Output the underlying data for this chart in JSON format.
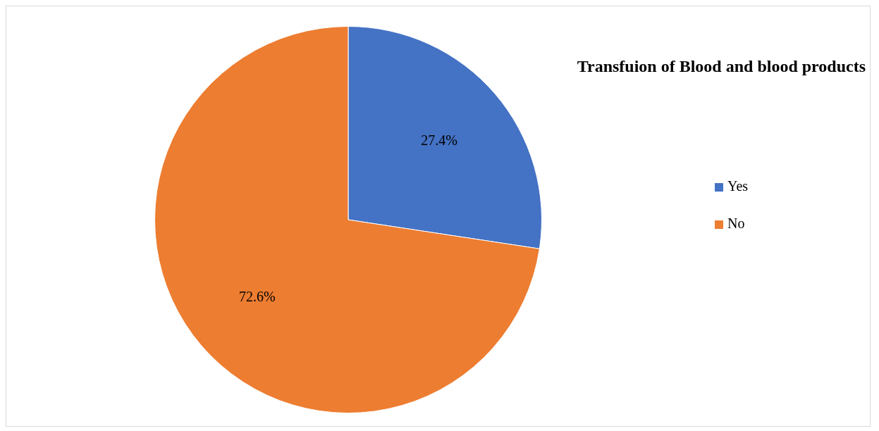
{
  "chart_data": {
    "type": "pie",
    "title": "Transfuion of Blood and blood products",
    "categories": [
      "Yes",
      "No"
    ],
    "values": [
      27.4,
      72.6
    ],
    "colors": [
      "#4472c4",
      "#ed7d31"
    ],
    "value_labels": [
      "27.4%",
      "72.6%"
    ],
    "legend": "right"
  }
}
